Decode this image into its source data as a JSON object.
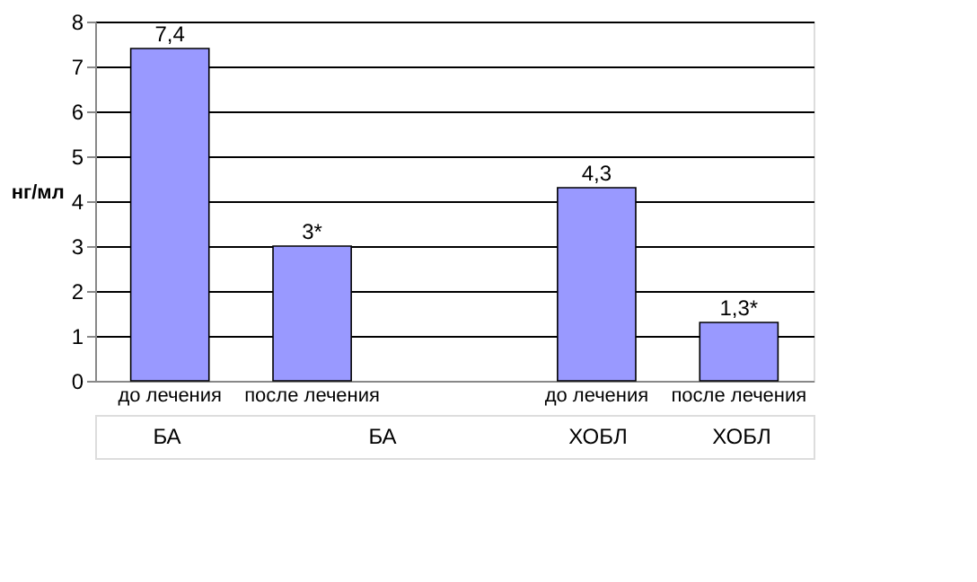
{
  "chart_data": {
    "type": "bar",
    "ylabel": "нг/мл",
    "categories": [
      "до лечения",
      "после лечения",
      null,
      "до лечения",
      "после лечения"
    ],
    "values": [
      7.4,
      3,
      null,
      4.3,
      1.3
    ],
    "value_labels": [
      "7,4",
      "3*",
      null,
      "4,3",
      "1,3*"
    ],
    "color": "#9999ff",
    "ylim": [
      0,
      8
    ],
    "yticks": [
      0,
      1,
      2,
      3,
      4,
      5,
      6,
      7,
      8
    ],
    "grid": "y",
    "legend": false,
    "annotations": [
      "БА",
      "БА",
      "ХОБЛ",
      "ХОБЛ"
    ]
  }
}
